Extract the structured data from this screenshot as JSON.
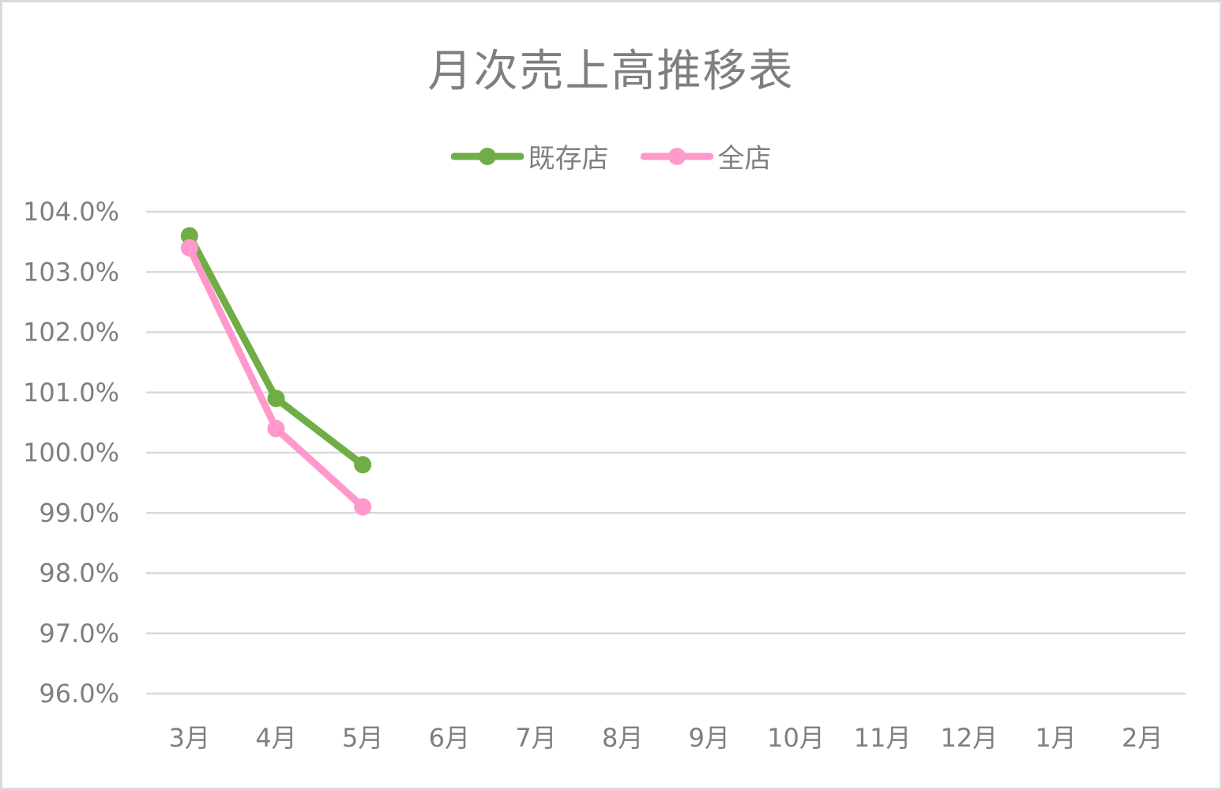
{
  "chart_data": {
    "type": "line",
    "title": "月次売上高推移表",
    "xlabel": "",
    "ylabel": "",
    "categories": [
      "3月",
      "4月",
      "5月",
      "6月",
      "7月",
      "8月",
      "9月",
      "10月",
      "11月",
      "12月",
      "1月",
      "2月"
    ],
    "y_ticks": [
      "104.0%",
      "103.0%",
      "102.0%",
      "101.0%",
      "100.0%",
      "99.0%",
      "98.0%",
      "97.0%",
      "96.0%"
    ],
    "ylim": [
      96.0,
      104.0
    ],
    "y_unit": "%",
    "grid": true,
    "legend_position": "top",
    "series": [
      {
        "name": "既存店",
        "color": "#70ad47",
        "values": [
          103.6,
          100.9,
          99.8,
          null,
          null,
          null,
          null,
          null,
          null,
          null,
          null,
          null
        ]
      },
      {
        "name": "全店",
        "color": "#ff99cc",
        "values": [
          103.4,
          100.4,
          99.1,
          null,
          null,
          null,
          null,
          null,
          null,
          null,
          null,
          null
        ]
      }
    ]
  }
}
